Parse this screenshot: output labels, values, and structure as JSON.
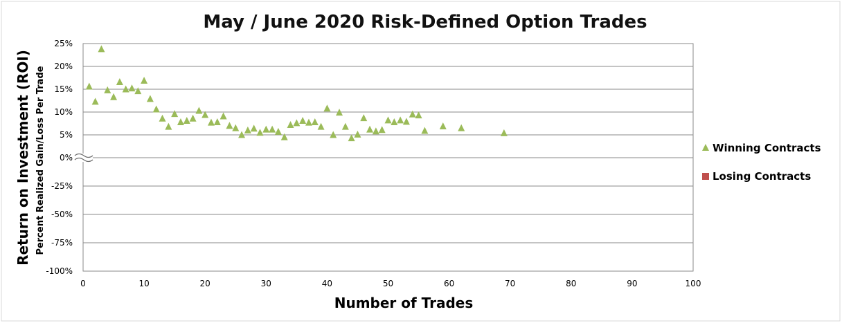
{
  "chart_data": {
    "type": "scatter",
    "title": "May / June 2020 Risk-Defined Option Trades",
    "xlabel": "Number of Trades",
    "ylabel": "Return on Investment (ROI)",
    "ylabel_sub": "Percent Realized Gain/Loss Per Trade",
    "xlim": [
      0,
      100
    ],
    "x_ticks": [
      "0",
      "10",
      "20",
      "30",
      "40",
      "50",
      "60",
      "70",
      "80",
      "90",
      "100"
    ],
    "y_ticks": [
      "25%",
      "20%",
      "15%",
      "10%",
      "5%",
      "0%",
      "-25%",
      "-50%",
      "-75%",
      "-100%"
    ],
    "y_axis_break": true,
    "grid": true,
    "legend_position": "right",
    "colors": {
      "winning": "#9bbb59",
      "losing": "#c0504d",
      "grid": "#898989",
      "border": "#d9d9d9"
    },
    "series": [
      {
        "name": "Winning Contracts",
        "marker": "triangle",
        "x": [
          1,
          2,
          3,
          4,
          5,
          6,
          7,
          8,
          9,
          10,
          11,
          12,
          13,
          14,
          15,
          16,
          17,
          18,
          19,
          20,
          21,
          22,
          23,
          24,
          25,
          26,
          27,
          28,
          29,
          30,
          31,
          32,
          33,
          34,
          35,
          36,
          37,
          38,
          39,
          40,
          41,
          42,
          43,
          44,
          45,
          46,
          47,
          48,
          49,
          50,
          51,
          52,
          53,
          54,
          55,
          56,
          59,
          62,
          69
        ],
        "y": [
          15.6,
          12.3,
          23.8,
          14.8,
          13.3,
          16.6,
          15.0,
          15.2,
          14.6,
          16.9,
          12.9,
          10.6,
          8.6,
          6.8,
          9.6,
          7.8,
          8.1,
          8.6,
          10.3,
          9.4,
          7.7,
          7.8,
          9.1,
          7.0,
          6.5,
          5.0,
          6.0,
          6.4,
          5.5,
          6.2,
          6.2,
          5.7,
          4.5,
          7.2,
          7.6,
          8.1,
          7.7,
          7.8,
          6.8,
          10.8,
          5.0,
          9.9,
          6.8,
          4.3,
          5.1,
          8.7,
          6.2,
          5.8,
          6.1,
          8.2,
          7.8,
          8.2,
          7.9,
          9.5,
          9.3,
          5.9,
          6.9,
          6.5,
          5.4
        ]
      },
      {
        "name": "Losing Contracts",
        "marker": "square",
        "x": [],
        "y": []
      }
    ]
  }
}
